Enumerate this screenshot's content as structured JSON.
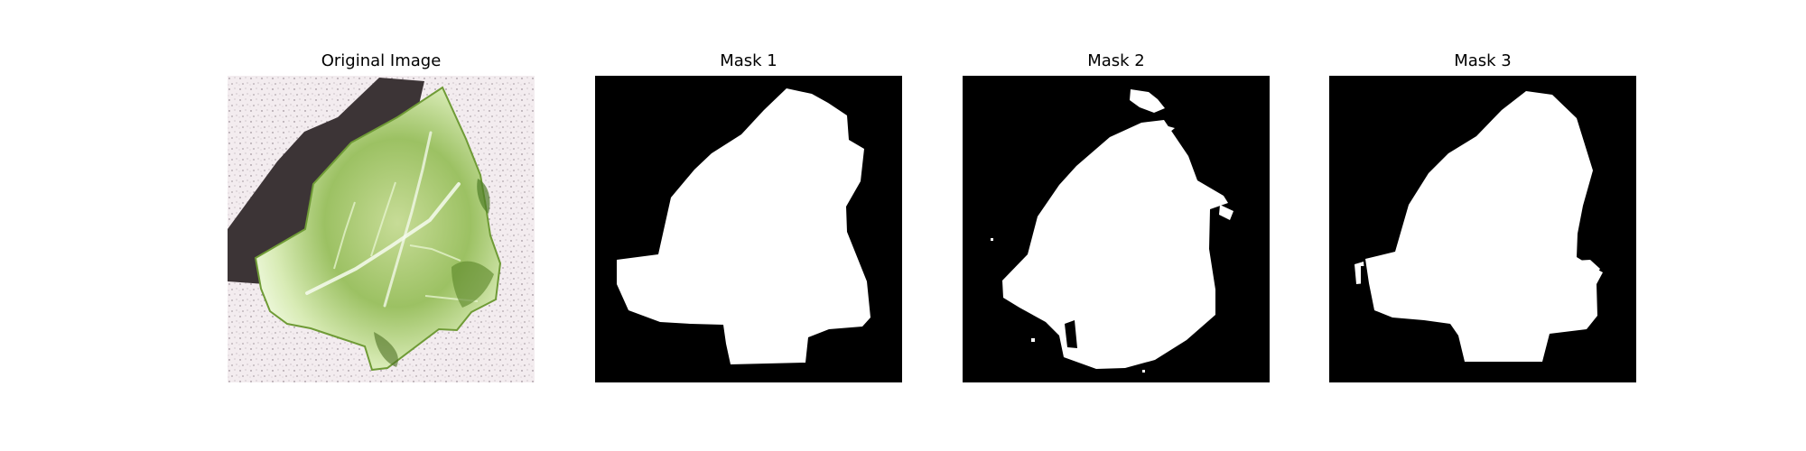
{
  "panels": [
    {
      "title": "Original Image"
    },
    {
      "title": "Mask 1"
    },
    {
      "title": "Mask 2"
    },
    {
      "title": "Mask 3"
    }
  ],
  "colors": {
    "background": "#ffffff",
    "mask_background": "#000000",
    "mask_foreground": "#ffffff",
    "shadow": "#3c3436",
    "leaf_light": "#e3f2c4",
    "leaf_mid": "#b8d67f",
    "leaf_dark": "#5f8a2d"
  }
}
